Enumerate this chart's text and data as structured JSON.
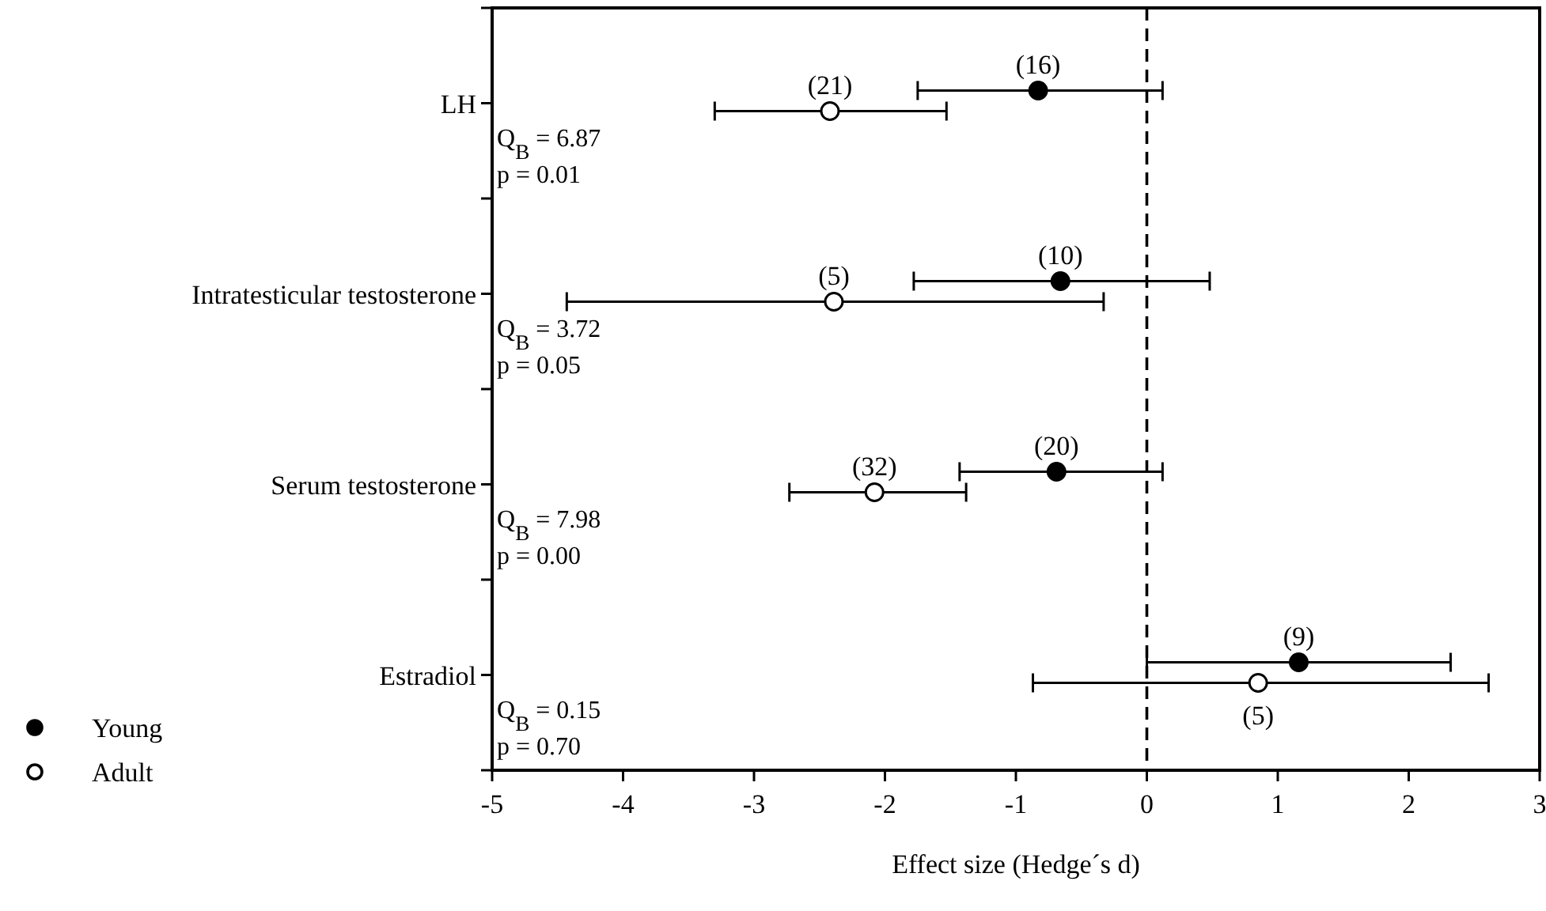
{
  "chart_data": {
    "type": "scatter",
    "orientation": "horizontal",
    "xlabel": "Effect size (Hedge´s d)",
    "categories": [
      "LH",
      "Intratesticular testosterone",
      "Serum testosterone",
      "Estradiol"
    ],
    "series": [
      {
        "name": "Young",
        "color": "#000000",
        "values": [
          -0.83,
          -0.66,
          -0.69,
          1.16
        ],
        "errors": [
          [
            -1.75,
            0.12
          ],
          [
            -1.78,
            0.48
          ],
          [
            -1.43,
            0.12
          ],
          [
            0.0,
            2.32
          ]
        ]
      },
      {
        "name": "Adult",
        "color": "#ffffff",
        "values": [
          -2.42,
          -2.39,
          -2.08,
          0.85
        ],
        "errors": [
          [
            -3.3,
            -1.53
          ],
          [
            -4.43,
            -0.33
          ],
          [
            -2.73,
            -1.38
          ],
          [
            -0.87,
            2.61
          ]
        ]
      }
    ],
    "xlim": [
      -5,
      3
    ],
    "xticks": [
      -5,
      -4,
      -3,
      -2,
      -1,
      0,
      1,
      2,
      3
    ],
    "ref_lines": [
      {
        "axis": "x",
        "value": 0,
        "line_style": "dashed",
        "color": "#000000"
      }
    ],
    "annotations": [
      "Q$_{B}$ = 6.87",
      "p = 0.01",
      "Q$_{B}$ = 3.72",
      "p = 0.05",
      "Q$_{B}$ = 7.98",
      "p = 0.00",
      "Q$_{B}$ = 0.15",
      "p = 0.70",
      {
        "text": "(16)",
        "x": -0.83,
        "y": "LH"
      },
      {
        "text": "(21)",
        "x": -2.42,
        "y": "LH"
      },
      {
        "text": "(10)",
        "x": -0.66,
        "y": "Intratesticular testosterone"
      },
      {
        "text": "(5)",
        "x": -2.39,
        "y": "Intratesticular testosterone"
      },
      {
        "text": "(20)",
        "x": -0.69,
        "y": "Serum testosterone"
      },
      {
        "text": "(32)",
        "x": -2.08,
        "y": "Serum testosterone"
      },
      {
        "text": "(9)",
        "x": 1.16,
        "y": "Estradiol"
      },
      {
        "text": "(5)",
        "x": 0.85,
        "y": "Estradiol"
      }
    ],
    "marker": "circle",
    "grid": false,
    "legend": "bottom left"
  }
}
